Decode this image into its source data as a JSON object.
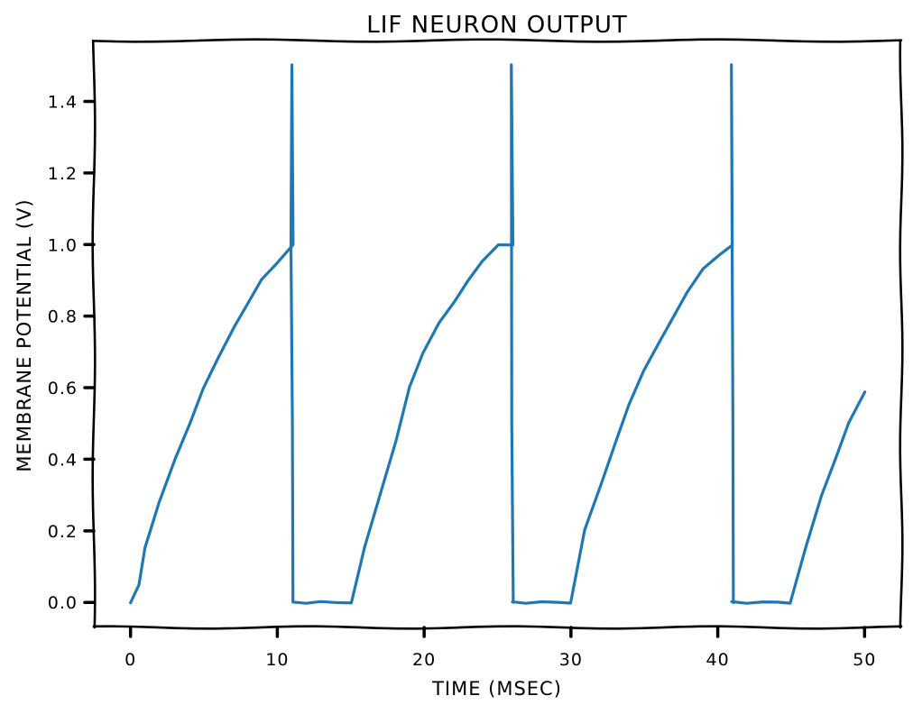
{
  "chart_data": {
    "type": "line",
    "title": "LIF NEURON OUTPUT",
    "xlabel": "TIME (MSEC)",
    "ylabel": "MEMBRANE POTENTIAL (V)",
    "xlim": [
      -2.5,
      52.5
    ],
    "ylim": [
      -0.07,
      1.57
    ],
    "xticks": [
      0,
      10,
      20,
      30,
      40,
      50
    ],
    "xtick_labels": [
      "0",
      "10",
      "20",
      "30",
      "40",
      "50"
    ],
    "yticks": [
      0.0,
      0.2,
      0.4,
      0.6,
      0.8,
      1.0,
      1.2,
      1.4
    ],
    "ytick_labels": [
      "0.0",
      "0.2",
      "0.4",
      "0.6",
      "0.8",
      "1.0",
      "1.2",
      "1.4"
    ],
    "grid": false,
    "style": "xkcd",
    "series": [
      {
        "color": "#1f77b4",
        "x": [
          0,
          0.5,
          1,
          2,
          3,
          4,
          5,
          6,
          7,
          8,
          9,
          10,
          11,
          11,
          11,
          11,
          11,
          12,
          13,
          14,
          15,
          16,
          17,
          18,
          19,
          20,
          21,
          22,
          23,
          24,
          25,
          26,
          26,
          26,
          26,
          26,
          27,
          28,
          29,
          30,
          31,
          32,
          33,
          34,
          35,
          36,
          37,
          38,
          39,
          40,
          41,
          41,
          41,
          41,
          41,
          42,
          43,
          44,
          45,
          46,
          47,
          48,
          49,
          50
        ],
        "y": [
          0.0,
          0.05,
          0.15,
          0.28,
          0.4,
          0.5,
          0.6,
          0.68,
          0.77,
          0.84,
          0.9,
          0.95,
          1.0,
          1.5,
          1.0,
          0.5,
          0.0,
          0.0,
          0.0,
          0.0,
          0.0,
          0.15,
          0.3,
          0.45,
          0.6,
          0.7,
          0.78,
          0.84,
          0.9,
          0.95,
          1.0,
          1.0,
          1.5,
          0.5,
          0.0,
          0.0,
          0.0,
          0.0,
          0.0,
          0.0,
          0.2,
          0.33,
          0.45,
          0.55,
          0.65,
          0.73,
          0.8,
          0.87,
          0.93,
          0.97,
          1.0,
          1.5,
          0.5,
          0.0,
          0.0,
          0.0,
          0.0,
          0.0,
          0.0,
          0.15,
          0.3,
          0.4,
          0.5,
          0.59
        ]
      }
    ]
  }
}
